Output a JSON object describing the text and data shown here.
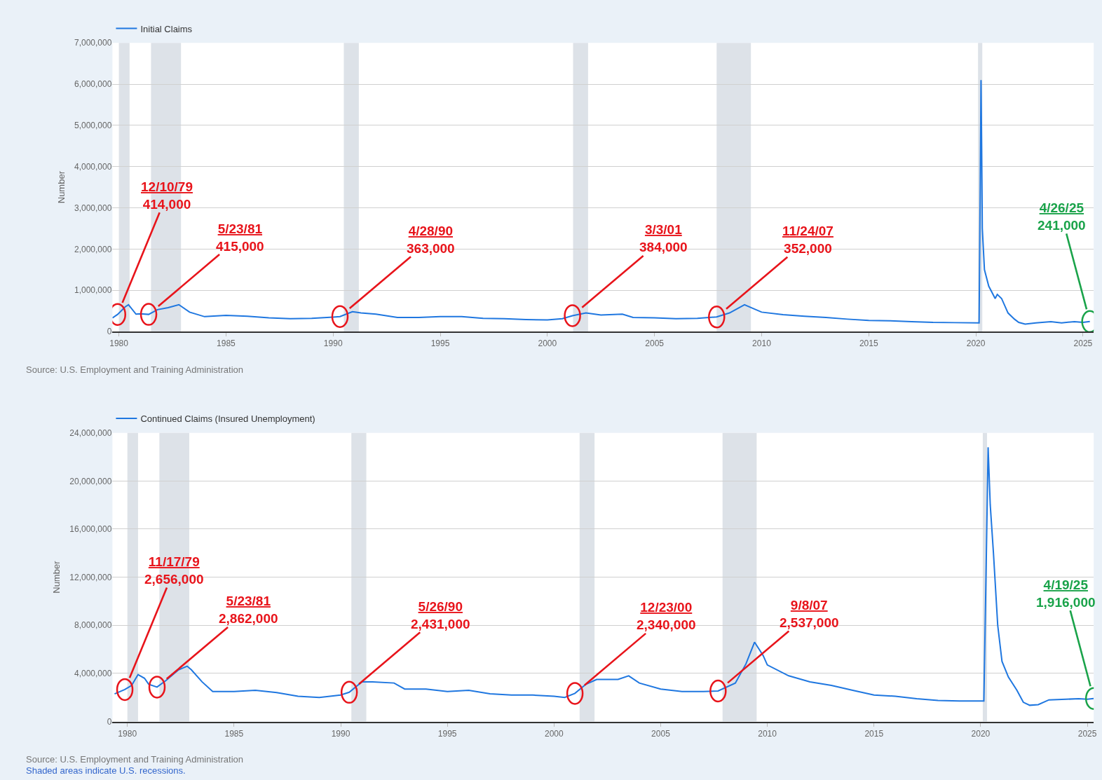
{
  "chart_data": [
    {
      "type": "line",
      "ylabel": "Number",
      "legend": "top left",
      "grid": "y",
      "x": [
        1979.7,
        1979.94,
        1980.3,
        1980.45,
        1980.8,
        1981.0,
        1981.39,
        1981.8,
        1982.3,
        1982.8,
        1983.3,
        1984,
        1985,
        1986,
        1987,
        1988,
        1989,
        1990.0,
        1990.32,
        1990.9,
        1991.3,
        1992,
        1993,
        1994,
        1995,
        1996,
        1997,
        1998,
        1999,
        2000,
        2000.7,
        2001.17,
        2001.8,
        2002.5,
        2003.5,
        2004,
        2005,
        2006,
        2007,
        2007.9,
        2008.5,
        2009.2,
        2009.6,
        2010,
        2011,
        2012,
        2013,
        2014,
        2015,
        2016,
        2017,
        2018,
        2019,
        2020.15,
        2020.2,
        2020.24,
        2020.27,
        2020.3,
        2020.4,
        2020.6,
        2020.9,
        2021.0,
        2021.2,
        2021.5,
        2021.8,
        2022.0,
        2022.3,
        2022.8,
        2023.5,
        2024,
        2024.6,
        2025.0,
        2025.32
      ],
      "series": [
        {
          "name": "Initial Claims",
          "color": "#1f77e0",
          "values": [
            330000,
            414000,
            600000,
            650000,
            420000,
            430000,
            415000,
            530000,
            580000,
            650000,
            470000,
            360000,
            390000,
            370000,
            330000,
            310000,
            320000,
            350000,
            363000,
            480000,
            450000,
            420000,
            340000,
            340000,
            360000,
            360000,
            320000,
            310000,
            290000,
            280000,
            310000,
            384000,
            450000,
            400000,
            420000,
            340000,
            330000,
            310000,
            320000,
            352000,
            450000,
            650000,
            560000,
            470000,
            410000,
            370000,
            340000,
            300000,
            270000,
            260000,
            240000,
            220000,
            215000,
            210000,
            3300000,
            6100000,
            4400000,
            2500000,
            1500000,
            1100000,
            800000,
            900000,
            800000,
            450000,
            300000,
            220000,
            180000,
            210000,
            240000,
            210000,
            240000,
            220000,
            241000
          ]
        }
      ],
      "xlim": [
        1979.7,
        2025.5
      ],
      "xticks": [
        1980,
        1985,
        1990,
        1995,
        2000,
        2005,
        2010,
        2015,
        2020,
        2025
      ],
      "ylim": [
        0,
        7000000
      ],
      "yticks": [
        0,
        {
          "value": 1000000,
          "label": "1,000,000"
        },
        {
          "value": 2000000,
          "label": "2,000,000"
        },
        {
          "value": 3000000,
          "label": "3,000,000"
        },
        {
          "value": 4000000,
          "label": "4,000,000"
        },
        {
          "value": 5000000,
          "label": "5,000,000"
        },
        {
          "value": 6000000,
          "label": "6,000,000"
        },
        {
          "value": 7000000,
          "label": "7,000,000"
        }
      ],
      "bands": [
        {
          "axis": "x",
          "from": 1980.0,
          "to": 1980.5,
          "color": "#dde2e8"
        },
        {
          "axis": "x",
          "from": 1981.5,
          "to": 1982.9,
          "color": "#dde2e8"
        },
        {
          "axis": "x",
          "from": 1990.5,
          "to": 1991.2,
          "color": "#dde2e8"
        },
        {
          "axis": "x",
          "from": 2001.2,
          "to": 2001.9,
          "color": "#dde2e8"
        },
        {
          "axis": "x",
          "from": 2007.9,
          "to": 2009.5,
          "color": "#dde2e8"
        },
        {
          "axis": "x",
          "from": 2020.1,
          "to": 2020.3,
          "color": "#dde2e8"
        }
      ],
      "annotations": [
        {
          "text": "12/10/79\n414,000",
          "x": 1979.94,
          "y": 414000
        },
        {
          "text": "5/23/81\n415,000",
          "x": 1981.39,
          "y": 415000
        },
        {
          "text": "4/28/90\n363,000",
          "x": 1990.32,
          "y": 363000
        },
        {
          "text": "3/3/01\n384,000",
          "x": 2001.17,
          "y": 384000
        },
        {
          "text": "11/24/07\n352,000",
          "x": 2007.9,
          "y": 352000
        },
        {
          "text": "4/26/25\n241,000",
          "x": 2025.32,
          "y": 241000
        },
        "Source: U.S. Employment and Training Administration"
      ]
    },
    {
      "type": "line",
      "ylabel": "Number",
      "legend": "top left",
      "grid": "y",
      "x": [
        1979.4,
        1979.88,
        1980.2,
        1980.5,
        1980.8,
        1981.0,
        1981.39,
        1981.8,
        1982.4,
        1982.8,
        1983.0,
        1983.5,
        1984,
        1985,
        1986,
        1987,
        1988,
        1989,
        1990.0,
        1990.4,
        1991.0,
        1991.5,
        1992.5,
        1993,
        1994,
        1995,
        1996,
        1997,
        1998,
        1999,
        2000,
        2000.5,
        2000.98,
        2001.5,
        2002,
        2003,
        2003.5,
        2004,
        2005,
        2006,
        2007,
        2007.69,
        2008.5,
        2009.0,
        2009.4,
        2009.8,
        2010,
        2011,
        2012,
        2013,
        2014,
        2015,
        2016,
        2017,
        2018,
        2019,
        2020.15,
        2020.25,
        2020.35,
        2020.45,
        2020.6,
        2020.8,
        2021.0,
        2021.3,
        2021.7,
        2022.0,
        2022.3,
        2022.7,
        2023.2,
        2024,
        2024.6,
        2025.0,
        2025.3
      ],
      "series": [
        {
          "name": "Continued Claims (Insured Unemployment)",
          "color": "#1f77e0",
          "values": [
            2300000,
            2656000,
            3000000,
            3900000,
            3600000,
            3100000,
            2862000,
            3400000,
            4300000,
            4600000,
            4300000,
            3300000,
            2500000,
            2500000,
            2600000,
            2400000,
            2100000,
            2000000,
            2200000,
            2431000,
            3300000,
            3300000,
            3200000,
            2700000,
            2700000,
            2500000,
            2600000,
            2300000,
            2200000,
            2200000,
            2100000,
            2000000,
            2340000,
            3100000,
            3500000,
            3500000,
            3800000,
            3200000,
            2700000,
            2500000,
            2500000,
            2537000,
            3200000,
            4800000,
            6600000,
            5500000,
            4700000,
            3800000,
            3300000,
            3000000,
            2600000,
            2200000,
            2100000,
            1900000,
            1750000,
            1700000,
            1700000,
            12000000,
            22800000,
            18000000,
            14000000,
            8000000,
            5000000,
            3700000,
            2600000,
            1600000,
            1350000,
            1400000,
            1800000,
            1850000,
            1900000,
            1850000,
            1916000
          ]
        }
      ],
      "xlim": [
        1979.3,
        2025.3
      ],
      "xticks": [
        1980,
        1985,
        1990,
        1995,
        2000,
        2005,
        2010,
        2015,
        2020,
        2025
      ],
      "ylim": [
        0,
        24000000
      ],
      "yticks": [
        0,
        {
          "value": 4000000,
          "label": "4,000,000"
        },
        {
          "value": 8000000,
          "label": "8,000,000"
        },
        {
          "value": 12000000,
          "label": "12,000,000"
        },
        {
          "value": 16000000,
          "label": "16,000,000"
        },
        {
          "value": 20000000,
          "label": "20,000,000"
        },
        {
          "value": 24000000,
          "label": "24,000,000"
        }
      ],
      "bands": [
        {
          "axis": "x",
          "from": 1980.0,
          "to": 1980.5,
          "color": "#dde2e8"
        },
        {
          "axis": "x",
          "from": 1981.5,
          "to": 1982.9,
          "color": "#dde2e8"
        },
        {
          "axis": "x",
          "from": 1990.5,
          "to": 1991.2,
          "color": "#dde2e8"
        },
        {
          "axis": "x",
          "from": 2001.2,
          "to": 2001.9,
          "color": "#dde2e8"
        },
        {
          "axis": "x",
          "from": 2007.9,
          "to": 2009.5,
          "color": "#dde2e8"
        },
        {
          "axis": "x",
          "from": 2020.1,
          "to": 2020.3,
          "color": "#dde2e8"
        }
      ],
      "annotations": [
        {
          "text": "11/17/79\n2,656,000",
          "x": 1979.88,
          "y": 2656000
        },
        {
          "text": "5/23/81\n2,862,000",
          "x": 1981.39,
          "y": 2862000
        },
        {
          "text": "5/26/90\n2,431,000",
          "x": 1990.4,
          "y": 2431000
        },
        {
          "text": "12/23/00\n2,340,000",
          "x": 2000.98,
          "y": 2340000
        },
        {
          "text": "9/8/07\n2,537,000",
          "x": 2007.69,
          "y": 2537000
        },
        {
          "text": "4/19/25\n1,916,000",
          "x": 2025.3,
          "y": 1916000
        },
        "Source: U.S. Employment and Training Administration",
        "Shaded areas indicate U.S. recessions."
      ]
    }
  ]
}
